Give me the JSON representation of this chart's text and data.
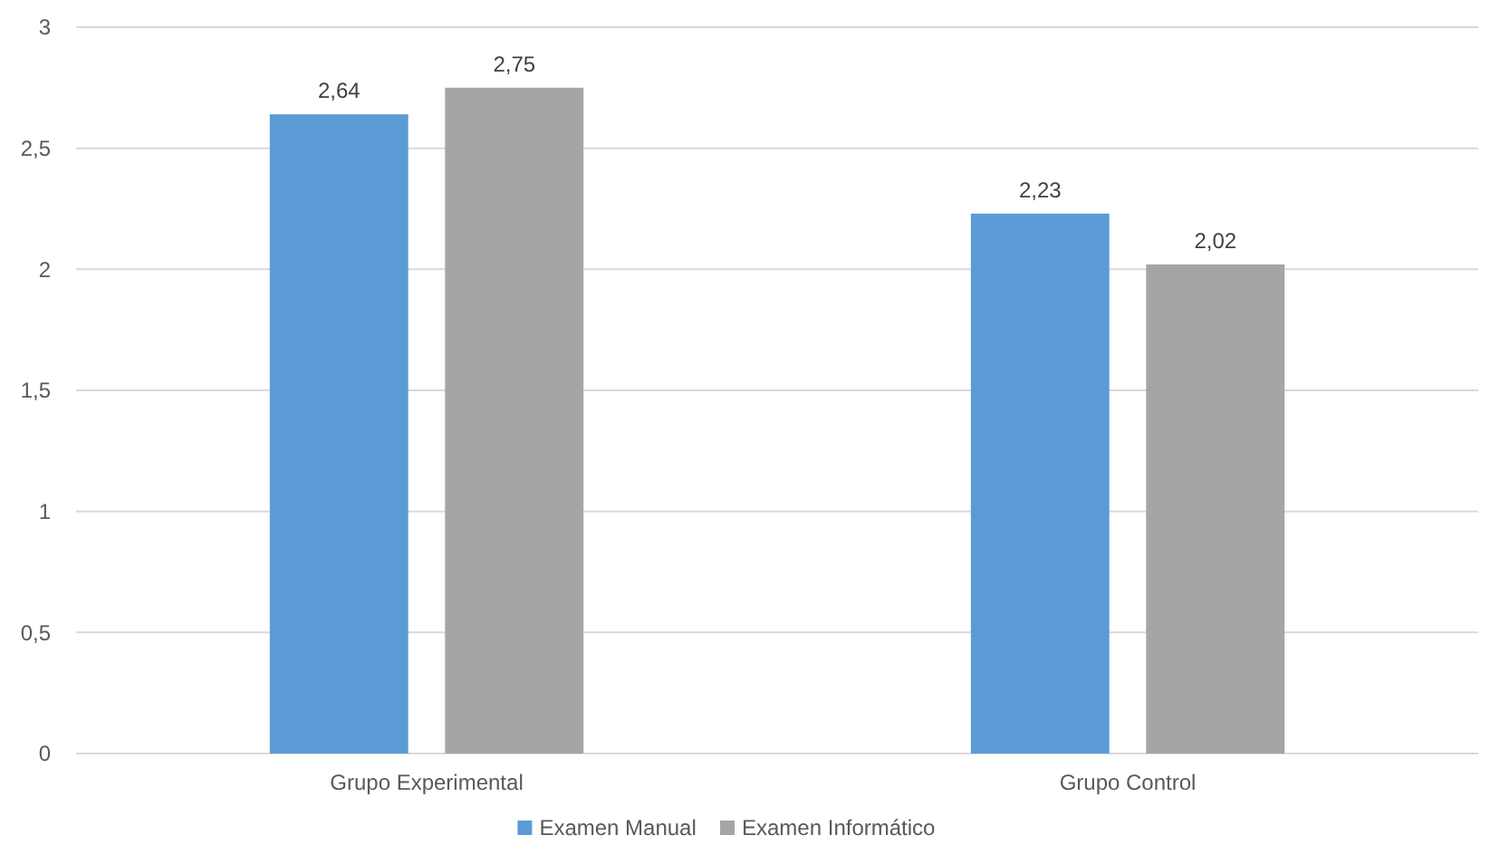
{
  "chart_data": {
    "type": "bar",
    "categories": [
      "Grupo Experimental",
      "Grupo Control"
    ],
    "series": [
      {
        "name": "Examen Manual",
        "color": "#5b9bd5",
        "values": [
          2.64,
          2.23
        ],
        "value_labels": [
          "2,64",
          "2,23"
        ]
      },
      {
        "name": "Examen Informático",
        "color": "#a5a5a5",
        "values": [
          2.75,
          2.02
        ],
        "value_labels": [
          "2,75",
          "2,02"
        ]
      }
    ],
    "ylim": [
      0,
      3
    ],
    "yticks": [
      0,
      {
        "value": 0.5,
        "label": "0,5"
      },
      1,
      {
        "value": 1.5,
        "label": "1,5"
      },
      2,
      {
        "value": 2.5,
        "label": "2,5"
      },
      3
    ],
    "grid": "y",
    "legend": "bottom"
  }
}
